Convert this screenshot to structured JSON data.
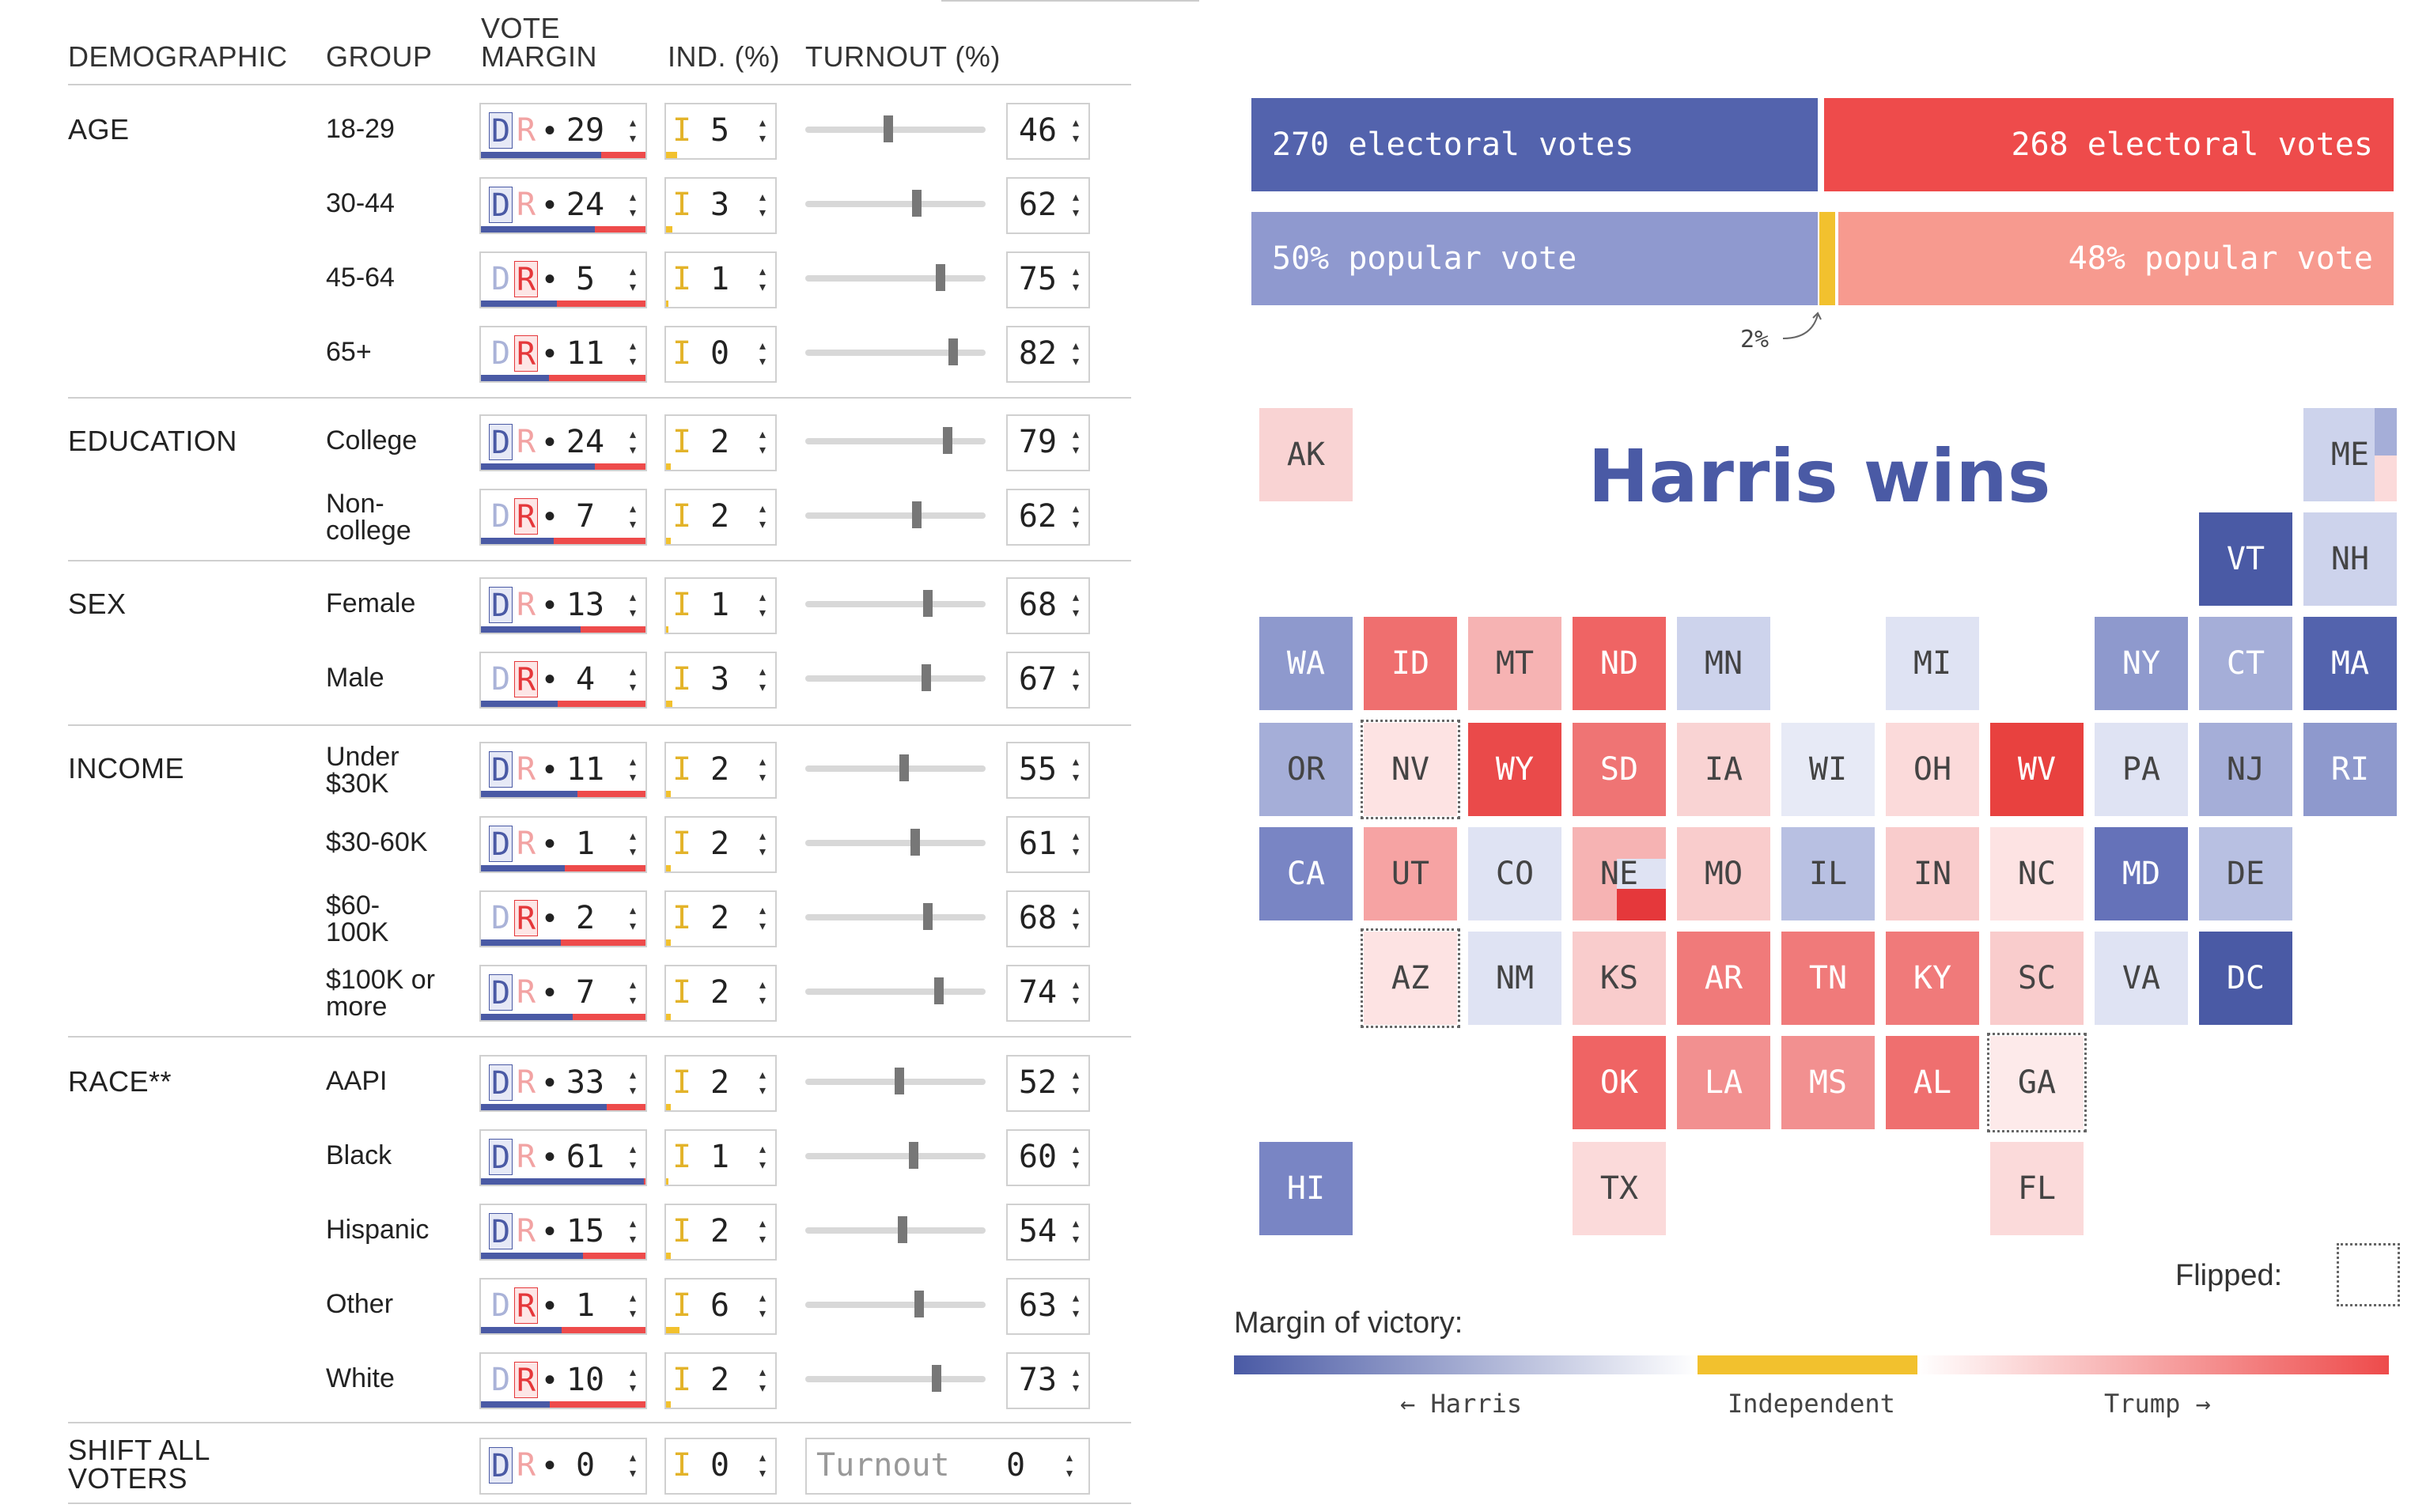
{
  "table": {
    "headers": {
      "demographic": "DEMOGRAPHIC",
      "group": "GROUP",
      "vote_margin_1": "VOTE",
      "vote_margin_2": "MARGIN",
      "ind": "IND. (%)",
      "turnout": "TURNOUT (%)"
    },
    "rows": [
      {
        "demographic": "AGE",
        "group_lines": [
          "18-29"
        ],
        "lead": "D",
        "margin": "29",
        "ind": "5",
        "turnout": "46"
      },
      {
        "demographic": "",
        "group_lines": [
          "30-44"
        ],
        "lead": "D",
        "margin": "24",
        "ind": "3",
        "turnout": "62"
      },
      {
        "demographic": "",
        "group_lines": [
          "45-64"
        ],
        "lead": "R",
        "margin": "5",
        "ind": "1",
        "turnout": "75"
      },
      {
        "demographic": "",
        "group_lines": [
          "65+"
        ],
        "lead": "R",
        "margin": "11",
        "ind": "0",
        "turnout": "82"
      },
      {
        "demographic": "EDUCATION",
        "group_lines": [
          "College"
        ],
        "lead": "D",
        "margin": "24",
        "ind": "2",
        "turnout": "79"
      },
      {
        "demographic": "",
        "group_lines": [
          "Non-",
          "college"
        ],
        "lead": "R",
        "margin": "7",
        "ind": "2",
        "turnout": "62"
      },
      {
        "demographic": "SEX",
        "group_lines": [
          "Female"
        ],
        "lead": "D",
        "margin": "13",
        "ind": "1",
        "turnout": "68"
      },
      {
        "demographic": "",
        "group_lines": [
          "Male"
        ],
        "lead": "R",
        "margin": "4",
        "ind": "3",
        "turnout": "67"
      },
      {
        "demographic": "INCOME",
        "group_lines": [
          "Under",
          "$30K"
        ],
        "lead": "D",
        "margin": "11",
        "ind": "2",
        "turnout": "55"
      },
      {
        "demographic": "",
        "group_lines": [
          "$30-60K"
        ],
        "lead": "D",
        "margin": "1",
        "ind": "2",
        "turnout": "61"
      },
      {
        "demographic": "",
        "group_lines": [
          "$60-",
          "100K"
        ],
        "lead": "R",
        "margin": "2",
        "ind": "2",
        "turnout": "68"
      },
      {
        "demographic": "",
        "group_lines": [
          "$100K or",
          "more"
        ],
        "lead": "D",
        "margin": "7",
        "ind": "2",
        "turnout": "74"
      },
      {
        "demographic": "RACE**",
        "group_lines": [
          "AAPI"
        ],
        "lead": "D",
        "margin": "33",
        "ind": "2",
        "turnout": "52"
      },
      {
        "demographic": "",
        "group_lines": [
          "Black"
        ],
        "lead": "D",
        "margin": "61",
        "ind": "1",
        "turnout": "60"
      },
      {
        "demographic": "",
        "group_lines": [
          "Hispanic"
        ],
        "lead": "D",
        "margin": "15",
        "ind": "2",
        "turnout": "54"
      },
      {
        "demographic": "",
        "group_lines": [
          "Other"
        ],
        "lead": "R",
        "margin": "1",
        "ind": "6",
        "turnout": "63"
      },
      {
        "demographic": "",
        "group_lines": [
          "White"
        ],
        "lead": "R",
        "margin": "10",
        "ind": "2",
        "turnout": "73"
      }
    ],
    "shift_all": {
      "label_lines": [
        "SHIFT ALL",
        "VOTERS"
      ],
      "lead": "D",
      "margin": "0",
      "ind": "0",
      "turnout_label": "Turnout",
      "turnout": "0"
    },
    "d_letter": "D",
    "r_letter": "R",
    "i_letter": "I",
    "dot": "•"
  },
  "results": {
    "harris_ev": "270 electoral votes",
    "trump_ev": "268 electoral votes",
    "harris_pv": "50% popular vote",
    "trump_pv": "48% popular vote",
    "ind_pv": "2%",
    "harris_pv_value": 50,
    "ind_pv_value": 2,
    "trump_pv_value": 48,
    "harris_ev_value": 270,
    "trump_ev_value": 268,
    "headline": "Harris wins"
  },
  "map": {
    "tiles": [
      {
        "abbr": "AK",
        "col": 0,
        "row": 0,
        "color": "#f9d3d3",
        "text": "#444"
      },
      {
        "abbr": "ME",
        "col": 10,
        "row": 0,
        "color": "#cdd3ec",
        "text": "#444"
      },
      {
        "abbr": "VT",
        "col": 9,
        "row": 1,
        "color": "#4a5aa5",
        "text": "#ffffff"
      },
      {
        "abbr": "NH",
        "col": 10,
        "row": 1,
        "color": "#cdd3ec",
        "text": "#444"
      },
      {
        "abbr": "WA",
        "col": 0,
        "row": 2,
        "color": "#8e99cd",
        "text": "#ffffff"
      },
      {
        "abbr": "ID",
        "col": 1,
        "row": 2,
        "color": "#ef6f6f",
        "text": "#ffffff"
      },
      {
        "abbr": "MT",
        "col": 2,
        "row": 2,
        "color": "#f6b3b3",
        "text": "#444"
      },
      {
        "abbr": "ND",
        "col": 3,
        "row": 2,
        "color": "#ef6464",
        "text": "#ffffff"
      },
      {
        "abbr": "MN",
        "col": 4,
        "row": 2,
        "color": "#cdd3ec",
        "text": "#444"
      },
      {
        "abbr": "MI",
        "col": 6,
        "row": 2,
        "color": "#dfe3f3",
        "text": "#444"
      },
      {
        "abbr": "NY",
        "col": 8,
        "row": 2,
        "color": "#8e99cd",
        "text": "#ffffff"
      },
      {
        "abbr": "CT",
        "col": 9,
        "row": 2,
        "color": "#a5aed8",
        "text": "#ffffff"
      },
      {
        "abbr": "MA",
        "col": 10,
        "row": 2,
        "color": "#5363ad",
        "text": "#ffffff"
      },
      {
        "abbr": "OR",
        "col": 0,
        "row": 3,
        "color": "#a5aed8",
        "text": "#444"
      },
      {
        "abbr": "NV",
        "col": 1,
        "row": 3,
        "color": "#fde3e3",
        "text": "#444",
        "flipped": true
      },
      {
        "abbr": "WY",
        "col": 2,
        "row": 3,
        "color": "#ea4a4a",
        "text": "#ffffff"
      },
      {
        "abbr": "SD",
        "col": 3,
        "row": 3,
        "color": "#ef7474",
        "text": "#ffffff"
      },
      {
        "abbr": "IA",
        "col": 4,
        "row": 3,
        "color": "#f9d3d3",
        "text": "#444"
      },
      {
        "abbr": "WI",
        "col": 5,
        "row": 3,
        "color": "#e7eaf6",
        "text": "#444"
      },
      {
        "abbr": "OH",
        "col": 6,
        "row": 3,
        "color": "#fbdada",
        "text": "#444"
      },
      {
        "abbr": "WV",
        "col": 7,
        "row": 3,
        "color": "#e8413f",
        "text": "#ffffff"
      },
      {
        "abbr": "PA",
        "col": 8,
        "row": 3,
        "color": "#dfe3f3",
        "text": "#444"
      },
      {
        "abbr": "NJ",
        "col": 9,
        "row": 3,
        "color": "#a5aed8",
        "text": "#444"
      },
      {
        "abbr": "RI",
        "col": 10,
        "row": 3,
        "color": "#8e99cd",
        "text": "#ffffff"
      },
      {
        "abbr": "CA",
        "col": 0,
        "row": 4,
        "color": "#7985c4",
        "text": "#ffffff"
      },
      {
        "abbr": "UT",
        "col": 1,
        "row": 4,
        "color": "#f6a3a3",
        "text": "#444"
      },
      {
        "abbr": "CO",
        "col": 2,
        "row": 4,
        "color": "#dfe3f3",
        "text": "#444"
      },
      {
        "abbr": "NE",
        "col": 3,
        "row": 4,
        "color": "#f6b3b3",
        "text": "#444"
      },
      {
        "abbr": "MO",
        "col": 4,
        "row": 4,
        "color": "#f9cccc",
        "text": "#444"
      },
      {
        "abbr": "IL",
        "col": 5,
        "row": 4,
        "color": "#b8c0e2",
        "text": "#444"
      },
      {
        "abbr": "IN",
        "col": 6,
        "row": 4,
        "color": "#f9cccc",
        "text": "#444"
      },
      {
        "abbr": "NC",
        "col": 7,
        "row": 4,
        "color": "#fde3e3",
        "text": "#444"
      },
      {
        "abbr": "MD",
        "col": 8,
        "row": 4,
        "color": "#6572b9",
        "text": "#ffffff"
      },
      {
        "abbr": "DE",
        "col": 9,
        "row": 4,
        "color": "#b8c0e2",
        "text": "#444"
      },
      {
        "abbr": "AZ",
        "col": 1,
        "row": 5,
        "color": "#fde3e3",
        "text": "#444",
        "flipped": true
      },
      {
        "abbr": "NM",
        "col": 2,
        "row": 5,
        "color": "#dfe3f3",
        "text": "#444"
      },
      {
        "abbr": "KS",
        "col": 3,
        "row": 5,
        "color": "#f9cccc",
        "text": "#444"
      },
      {
        "abbr": "AR",
        "col": 4,
        "row": 5,
        "color": "#f07a7a",
        "text": "#ffffff"
      },
      {
        "abbr": "TN",
        "col": 5,
        "row": 5,
        "color": "#f07a7a",
        "text": "#ffffff"
      },
      {
        "abbr": "KY",
        "col": 6,
        "row": 5,
        "color": "#f07a7a",
        "text": "#ffffff"
      },
      {
        "abbr": "SC",
        "col": 7,
        "row": 5,
        "color": "#f9cccc",
        "text": "#444"
      },
      {
        "abbr": "VA",
        "col": 8,
        "row": 5,
        "color": "#dfe3f3",
        "text": "#444"
      },
      {
        "abbr": "DC",
        "col": 9,
        "row": 5,
        "color": "#4a5aa5",
        "text": "#ffffff"
      },
      {
        "abbr": "OK",
        "col": 3,
        "row": 6,
        "color": "#ef6464",
        "text": "#ffffff"
      },
      {
        "abbr": "LA",
        "col": 4,
        "row": 6,
        "color": "#f29090",
        "text": "#ffffff"
      },
      {
        "abbr": "MS",
        "col": 5,
        "row": 6,
        "color": "#f29090",
        "text": "#ffffff"
      },
      {
        "abbr": "AL",
        "col": 6,
        "row": 6,
        "color": "#ef6f6f",
        "text": "#ffffff"
      },
      {
        "abbr": "GA",
        "col": 7,
        "row": 6,
        "color": "#fdeaea",
        "text": "#444",
        "flipped": true
      },
      {
        "abbr": "HI",
        "col": 0,
        "row": 7,
        "color": "#7985c4",
        "text": "#ffffff"
      },
      {
        "abbr": "TX",
        "col": 3,
        "row": 7,
        "color": "#fbdada",
        "text": "#444"
      },
      {
        "abbr": "FL",
        "col": 7,
        "row": 7,
        "color": "#fbdada",
        "text": "#444"
      }
    ]
  },
  "legend": {
    "flipped_label": "Flipped:",
    "title": "Margin of victory:",
    "harris": "← Harris",
    "independent": "Independent",
    "trump": "Trump →"
  },
  "colors": {
    "dem": "#4a5aa5",
    "dem_light": "#8f99cf",
    "rep": "#ee4b4b",
    "rep_light": "#f79a8f",
    "ind": "#f2c12e"
  }
}
